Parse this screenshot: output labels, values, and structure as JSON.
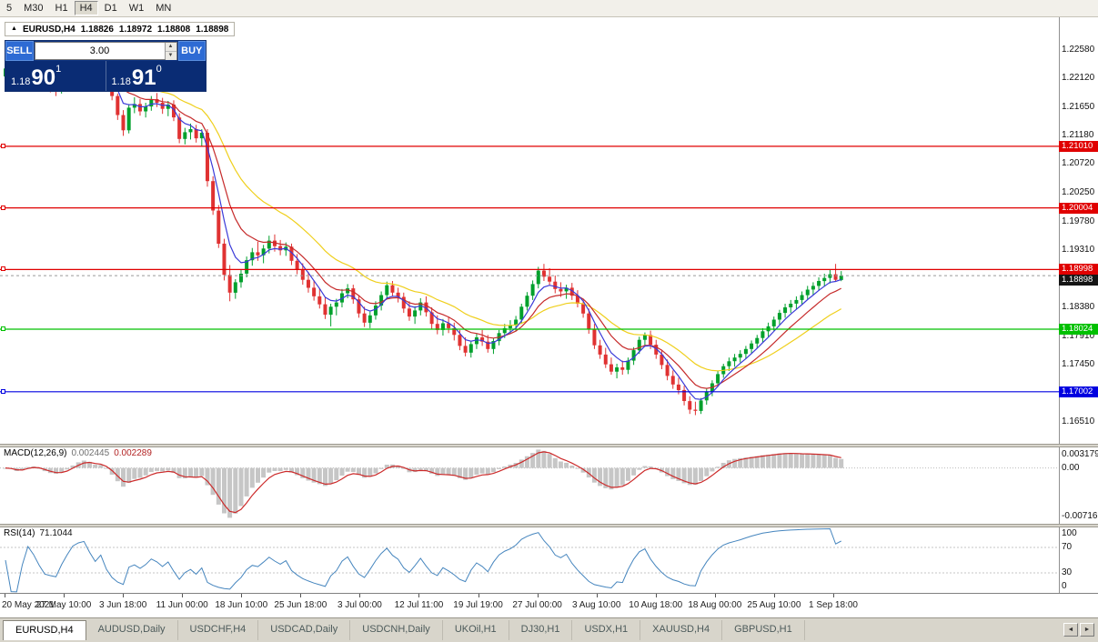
{
  "toolbar": {
    "timeframes": [
      "5",
      "M30",
      "H1",
      "H4",
      "D1",
      "W1",
      "MN"
    ],
    "active": "H4"
  },
  "title": {
    "symbol": "EURUSD,H4",
    "open": "1.18826",
    "high": "1.18972",
    "low": "1.18808",
    "close": "1.18898"
  },
  "trade_panel": {
    "sell": "SELL",
    "buy": "BUY",
    "volume": "3.00",
    "bid": {
      "prefix": "1.18",
      "big": "90",
      "sup": "1"
    },
    "ask": {
      "prefix": "1.18",
      "big": "91",
      "sup": "0"
    }
  },
  "icons": {
    "marker": "▲",
    "up": "▲",
    "down": "▼",
    "left": "◄",
    "right": "►"
  },
  "colors": {
    "up": "#00A02C",
    "down": "#E03232",
    "macd_hist": "#C6C6C6",
    "macd_signal": "#CC2A2A",
    "rsi_line": "#4585BE",
    "current_dash": "#999999"
  },
  "chart_data": {
    "type": "candlestick",
    "symbol": "EURUSD",
    "timeframe": "H4",
    "y_axis": {
      "max": 1.23116,
      "min": 1.16153,
      "labels": [
        "1.22580",
        "1.22120",
        "1.21650",
        "1.21180",
        "1.20720",
        "1.20250",
        "1.19780",
        "1.19310",
        "1.18840",
        "1.18380",
        "1.17910",
        "1.17450",
        "1.16980",
        "1.16510"
      ]
    },
    "x_labels": [
      "20 May 2021",
      "27 May 10:00",
      "3 Jun 18:00",
      "11 Jun 00:00",
      "18 Jun 10:00",
      "25 Jun 18:00",
      "3 Jul 00:00",
      "12 Jul 11:00",
      "19 Jul 19:00",
      "27 Jul 00:00",
      "3 Aug 10:00",
      "10 Aug 18:00",
      "18 Aug 00:00",
      "25 Aug 10:00",
      "1 Sep 18:00"
    ],
    "moving_averages": [
      {
        "period": 22,
        "color": "#EFCF1C"
      },
      {
        "period": 10,
        "color": "#C62B2B"
      },
      {
        "period": 5,
        "color": "#3A3AD8"
      }
    ],
    "hlines": [
      {
        "price": 1.2101,
        "label": "1.21010",
        "color": "#E00000"
      },
      {
        "price": 1.20004,
        "label": "1.20004",
        "color": "#E00000"
      },
      {
        "price": 1.18998,
        "label": "1.18998",
        "color": "#E00000"
      },
      {
        "price": 1.18024,
        "label": "1.18024",
        "color": "#00C000"
      },
      {
        "price": 1.17002,
        "label": "1.17002",
        "color": "#0000E0"
      }
    ],
    "current_price": {
      "price": 1.18898,
      "label": "1.18898",
      "color": "#151515"
    },
    "macd": {
      "name": "MACD(12,26,9)",
      "value_main": "0.002445",
      "value_signal": "0.002289",
      "axis_max": "0.003179",
      "axis_zero": "0.00",
      "axis_min": "-0.007162",
      "fast": 4,
      "slow": 9,
      "signal": 3
    },
    "rsi": {
      "name": "RSI(14)",
      "value": "71.1044",
      "axis": [
        "100",
        "70",
        "30",
        "0"
      ],
      "levels": [
        70,
        30
      ],
      "period": 5
    },
    "candles": [
      [
        1.2215,
        1.2233,
        1.2206,
        1.2228
      ],
      [
        1.2228,
        1.2239,
        1.2218,
        1.2221
      ],
      [
        1.2221,
        1.223,
        1.2202,
        1.2208
      ],
      [
        1.2208,
        1.2225,
        1.2198,
        1.2219
      ],
      [
        1.2219,
        1.2248,
        1.2212,
        1.224
      ],
      [
        1.224,
        1.2255,
        1.2228,
        1.2233
      ],
      [
        1.2233,
        1.2242,
        1.2214,
        1.222
      ],
      [
        1.222,
        1.2231,
        1.2196,
        1.2202
      ],
      [
        1.2202,
        1.2218,
        1.2189,
        1.2198
      ],
      [
        1.2198,
        1.221,
        1.2183,
        1.2195
      ],
      [
        1.2195,
        1.2212,
        1.2187,
        1.2206
      ],
      [
        1.2206,
        1.2225,
        1.22,
        1.2219
      ],
      [
        1.2219,
        1.2244,
        1.2213,
        1.2238
      ],
      [
        1.2238,
        1.2256,
        1.223,
        1.2248
      ],
      [
        1.2248,
        1.2266,
        1.2239,
        1.2253
      ],
      [
        1.2253,
        1.226,
        1.2235,
        1.2242
      ],
      [
        1.2242,
        1.225,
        1.2223,
        1.223
      ],
      [
        1.223,
        1.2246,
        1.2221,
        1.224
      ],
      [
        1.224,
        1.2247,
        1.2208,
        1.2214
      ],
      [
        1.2214,
        1.2222,
        1.2176,
        1.2183
      ],
      [
        1.2183,
        1.2187,
        1.2144,
        1.2152
      ],
      [
        1.2152,
        1.216,
        1.2118,
        1.2127
      ],
      [
        1.2127,
        1.217,
        1.2122,
        1.2164
      ],
      [
        1.2164,
        1.2181,
        1.2155,
        1.217
      ],
      [
        1.217,
        1.2178,
        1.2151,
        1.2158
      ],
      [
        1.2158,
        1.2172,
        1.2148,
        1.2166
      ],
      [
        1.2166,
        1.2183,
        1.2159,
        1.2178
      ],
      [
        1.2178,
        1.2188,
        1.2165,
        1.2172
      ],
      [
        1.2172,
        1.218,
        1.2154,
        1.2162
      ],
      [
        1.2162,
        1.2175,
        1.215,
        1.2169
      ],
      [
        1.2169,
        1.2176,
        1.2142,
        1.2148
      ],
      [
        1.2148,
        1.2155,
        1.2106,
        1.2113
      ],
      [
        1.2113,
        1.2131,
        1.2104,
        1.2124
      ],
      [
        1.2124,
        1.2138,
        1.2112,
        1.2129
      ],
      [
        1.2129,
        1.2136,
        1.2107,
        1.2114
      ],
      [
        1.2114,
        1.2129,
        1.2101,
        1.2123
      ],
      [
        1.2123,
        1.2129,
        1.2035,
        1.2044
      ],
      [
        1.2044,
        1.2052,
        1.1989,
        1.1996
      ],
      [
        1.1996,
        1.2005,
        1.1935,
        1.1942
      ],
      [
        1.1942,
        1.195,
        1.1882,
        1.1891
      ],
      [
        1.1891,
        1.1907,
        1.1848,
        1.1862
      ],
      [
        1.1862,
        1.1884,
        1.1852,
        1.1879
      ],
      [
        1.1879,
        1.19,
        1.187,
        1.1893
      ],
      [
        1.1893,
        1.1921,
        1.1887,
        1.1915
      ],
      [
        1.1915,
        1.1935,
        1.1906,
        1.1928
      ],
      [
        1.1928,
        1.1945,
        1.1914,
        1.1923
      ],
      [
        1.1923,
        1.194,
        1.191,
        1.1934
      ],
      [
        1.1934,
        1.1955,
        1.1926,
        1.1947
      ],
      [
        1.1947,
        1.1957,
        1.1929,
        1.1938
      ],
      [
        1.1938,
        1.1948,
        1.1923,
        1.1931
      ],
      [
        1.1931,
        1.1944,
        1.1922,
        1.1937
      ],
      [
        1.1937,
        1.1942,
        1.1907,
        1.1914
      ],
      [
        1.1914,
        1.1925,
        1.1892,
        1.1899
      ],
      [
        1.1899,
        1.191,
        1.1875,
        1.1883
      ],
      [
        1.1883,
        1.1896,
        1.1862,
        1.187
      ],
      [
        1.187,
        1.1882,
        1.1849,
        1.1856
      ],
      [
        1.1856,
        1.1869,
        1.1836,
        1.1843
      ],
      [
        1.1843,
        1.1855,
        1.1819,
        1.1826
      ],
      [
        1.1826,
        1.1844,
        1.1807,
        1.1839
      ],
      [
        1.1839,
        1.1852,
        1.1825,
        1.1846
      ],
      [
        1.1846,
        1.1868,
        1.1838,
        1.1861
      ],
      [
        1.1861,
        1.1876,
        1.1853,
        1.1869
      ],
      [
        1.1869,
        1.1875,
        1.1844,
        1.1851
      ],
      [
        1.1851,
        1.1858,
        1.1821,
        1.1828
      ],
      [
        1.1828,
        1.1839,
        1.1806,
        1.1813
      ],
      [
        1.1813,
        1.1831,
        1.1804,
        1.1825
      ],
      [
        1.1825,
        1.1848,
        1.1818,
        1.1841
      ],
      [
        1.1841,
        1.1864,
        1.1833,
        1.1858
      ],
      [
        1.1858,
        1.188,
        1.1851,
        1.1874
      ],
      [
        1.1874,
        1.1881,
        1.1855,
        1.1862
      ],
      [
        1.1862,
        1.187,
        1.1846,
        1.1855
      ],
      [
        1.1855,
        1.1862,
        1.1829,
        1.1836
      ],
      [
        1.1836,
        1.1848,
        1.1816,
        1.1823
      ],
      [
        1.1823,
        1.184,
        1.1811,
        1.1833
      ],
      [
        1.1833,
        1.1853,
        1.1825,
        1.1846
      ],
      [
        1.1846,
        1.1856,
        1.1823,
        1.183
      ],
      [
        1.183,
        1.1838,
        1.1803,
        1.1811
      ],
      [
        1.1811,
        1.1825,
        1.1794,
        1.1801
      ],
      [
        1.1801,
        1.1819,
        1.1792,
        1.1812
      ],
      [
        1.1812,
        1.1823,
        1.1796,
        1.1804
      ],
      [
        1.1804,
        1.1813,
        1.1784,
        1.1793
      ],
      [
        1.1793,
        1.1801,
        1.1768,
        1.1775
      ],
      [
        1.1775,
        1.1789,
        1.1758,
        1.1764
      ],
      [
        1.1764,
        1.1782,
        1.1756,
        1.1778
      ],
      [
        1.1778,
        1.1795,
        1.177,
        1.1789
      ],
      [
        1.1789,
        1.1801,
        1.1775,
        1.1782
      ],
      [
        1.1782,
        1.1793,
        1.1764,
        1.177
      ],
      [
        1.177,
        1.1788,
        1.1762,
        1.1783
      ],
      [
        1.1783,
        1.1801,
        1.1776,
        1.1796
      ],
      [
        1.1796,
        1.1811,
        1.1788,
        1.1804
      ],
      [
        1.1804,
        1.1817,
        1.1796,
        1.1809
      ],
      [
        1.1809,
        1.1824,
        1.1799,
        1.1818
      ],
      [
        1.1818,
        1.1844,
        1.1811,
        1.1839
      ],
      [
        1.1839,
        1.1863,
        1.1833,
        1.1857
      ],
      [
        1.1857,
        1.1882,
        1.185,
        1.1876
      ],
      [
        1.1876,
        1.1904,
        1.1869,
        1.1898
      ],
      [
        1.1898,
        1.1909,
        1.1881,
        1.1888
      ],
      [
        1.1888,
        1.1902,
        1.1874,
        1.188
      ],
      [
        1.188,
        1.189,
        1.1861,
        1.1868
      ],
      [
        1.1868,
        1.1879,
        1.1855,
        1.1864
      ],
      [
        1.1864,
        1.1875,
        1.1852,
        1.187
      ],
      [
        1.187,
        1.1878,
        1.185,
        1.1857
      ],
      [
        1.1857,
        1.1866,
        1.1838,
        1.1844
      ],
      [
        1.1844,
        1.1852,
        1.1821,
        1.1828
      ],
      [
        1.1828,
        1.1836,
        1.1795,
        1.1802
      ],
      [
        1.1802,
        1.1811,
        1.177,
        1.1776
      ],
      [
        1.1776,
        1.1785,
        1.1754,
        1.1761
      ],
      [
        1.1761,
        1.1772,
        1.1739,
        1.1745
      ],
      [
        1.1745,
        1.1756,
        1.1728,
        1.1733
      ],
      [
        1.1733,
        1.1746,
        1.1722,
        1.174
      ],
      [
        1.174,
        1.1751,
        1.1728,
        1.1736
      ],
      [
        1.1736,
        1.1756,
        1.1729,
        1.1751
      ],
      [
        1.1751,
        1.1773,
        1.1744,
        1.1768
      ],
      [
        1.1768,
        1.179,
        1.1762,
        1.1785
      ],
      [
        1.1785,
        1.1797,
        1.1774,
        1.1793
      ],
      [
        1.1793,
        1.18,
        1.177,
        1.1777
      ],
      [
        1.1777,
        1.1785,
        1.1754,
        1.1761
      ],
      [
        1.1761,
        1.1769,
        1.1737,
        1.1744
      ],
      [
        1.1744,
        1.1753,
        1.1719,
        1.1726
      ],
      [
        1.1726,
        1.1735,
        1.1705,
        1.1712
      ],
      [
        1.1712,
        1.1723,
        1.1696,
        1.1703
      ],
      [
        1.1703,
        1.171,
        1.1678,
        1.1685
      ],
      [
        1.1685,
        1.1693,
        1.1664,
        1.1671
      ],
      [
        1.1671,
        1.1684,
        1.1662,
        1.1669
      ],
      [
        1.1669,
        1.169,
        1.1664,
        1.1686
      ],
      [
        1.1686,
        1.1705,
        1.1679,
        1.17
      ],
      [
        1.17,
        1.1719,
        1.1693,
        1.1714
      ],
      [
        1.1714,
        1.1734,
        1.1708,
        1.1729
      ],
      [
        1.1729,
        1.1746,
        1.1723,
        1.1742
      ],
      [
        1.1742,
        1.1756,
        1.1734,
        1.175
      ],
      [
        1.175,
        1.1762,
        1.1741,
        1.1756
      ],
      [
        1.1756,
        1.1768,
        1.1748,
        1.1762
      ],
      [
        1.1762,
        1.1775,
        1.1754,
        1.177
      ],
      [
        1.177,
        1.1784,
        1.1762,
        1.1779
      ],
      [
        1.1779,
        1.1793,
        1.1771,
        1.1788
      ],
      [
        1.1788,
        1.1804,
        1.1781,
        1.1799
      ],
      [
        1.1799,
        1.1813,
        1.179,
        1.1807
      ],
      [
        1.1807,
        1.1823,
        1.18,
        1.1818
      ],
      [
        1.1818,
        1.1834,
        1.181,
        1.1829
      ],
      [
        1.1829,
        1.1844,
        1.1821,
        1.1838
      ],
      [
        1.1838,
        1.185,
        1.1829,
        1.1844
      ],
      [
        1.1844,
        1.1856,
        1.1835,
        1.185
      ],
      [
        1.185,
        1.1864,
        1.1843,
        1.1858
      ],
      [
        1.1858,
        1.1873,
        1.1851,
        1.1867
      ],
      [
        1.1867,
        1.1879,
        1.1858,
        1.1873
      ],
      [
        1.1873,
        1.1887,
        1.1865,
        1.1881
      ],
      [
        1.1881,
        1.1893,
        1.1872,
        1.1886
      ],
      [
        1.1886,
        1.19,
        1.1877,
        1.1892
      ],
      [
        1.1892,
        1.1909,
        1.1881,
        1.1883
      ],
      [
        1.18826,
        1.18972,
        1.18808,
        1.18898
      ]
    ]
  },
  "tabs": {
    "items": [
      "EURUSD,H4",
      "AUDUSD,Daily",
      "USDCHF,H4",
      "USDCAD,Daily",
      "USDCNH,Daily",
      "UKOil,H1",
      "DJ30,H1",
      "USDX,H1",
      "XAUUSD,H4",
      "GBPUSD,H1"
    ],
    "active": "EURUSD,H4"
  }
}
